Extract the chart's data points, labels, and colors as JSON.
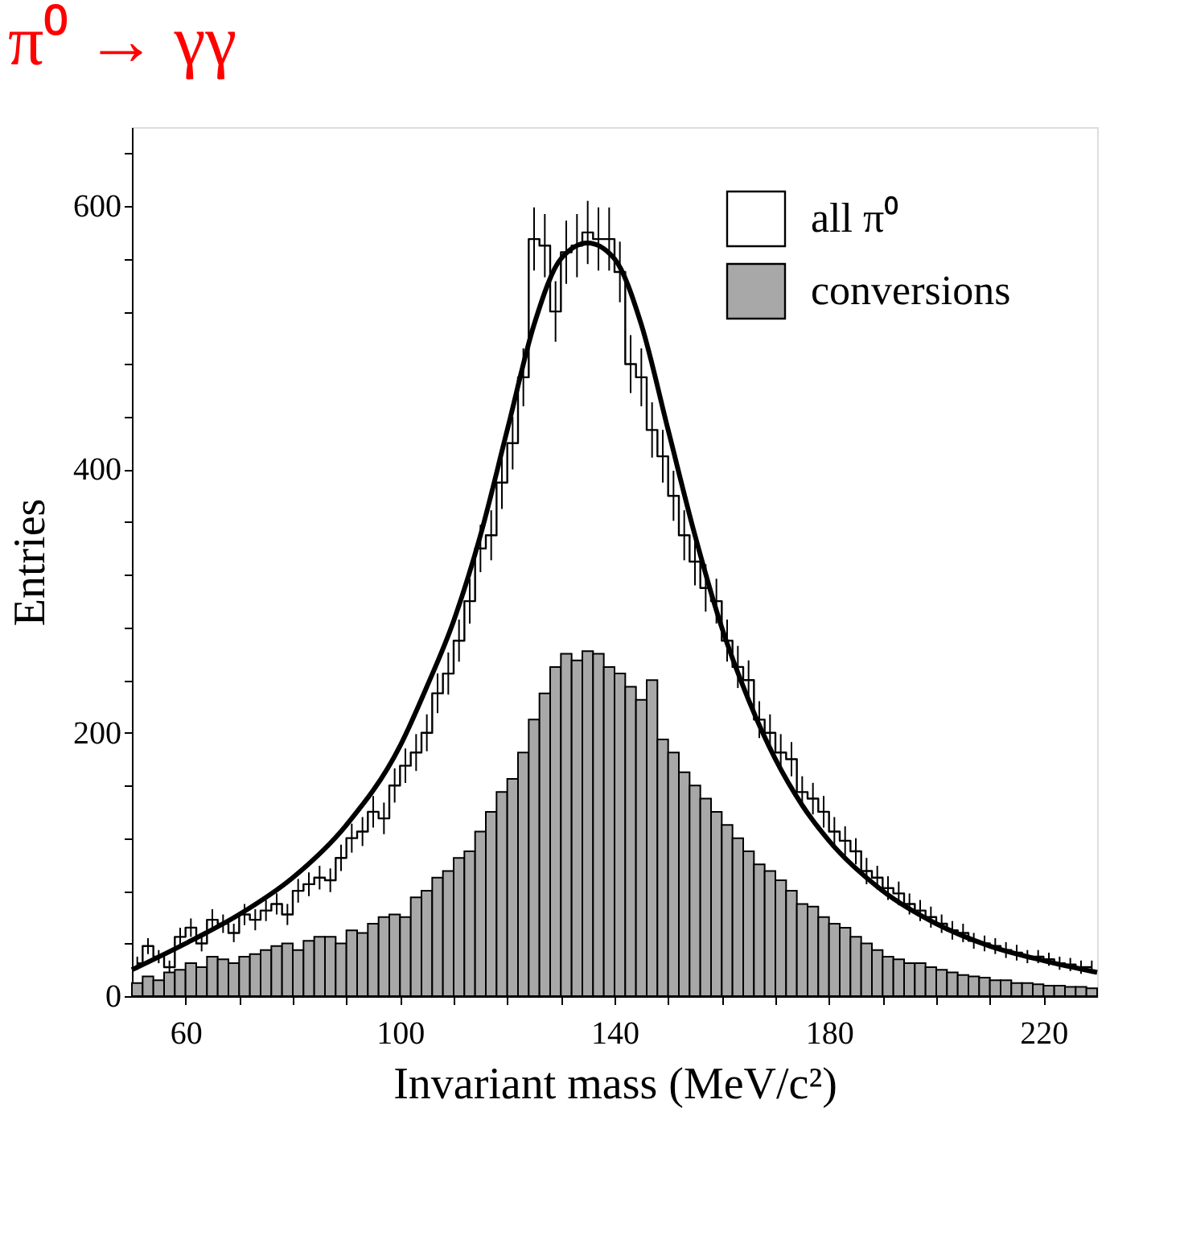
{
  "chart_data": {
    "type": "histogram",
    "title": "π⁰ → γγ",
    "xlabel": "Invariant mass  (MeV/c²)",
    "ylabel": "Entries",
    "bins": [
      50,
      52,
      54,
      56,
      58,
      60,
      62,
      64,
      66,
      68,
      70,
      72,
      74,
      76,
      78,
      80,
      82,
      84,
      86,
      88,
      90,
      92,
      94,
      96,
      98,
      100,
      102,
      104,
      106,
      108,
      110,
      112,
      114,
      116,
      118,
      120,
      122,
      124,
      126,
      128,
      130,
      132,
      134,
      136,
      138,
      140,
      142,
      144,
      146,
      148,
      150,
      152,
      154,
      156,
      158,
      160,
      162,
      164,
      166,
      168,
      170,
      172,
      174,
      176,
      178,
      180,
      182,
      184,
      186,
      188,
      190,
      192,
      194,
      196,
      198,
      200,
      202,
      204,
      206,
      208,
      210,
      212,
      214,
      216,
      218,
      220,
      222,
      224,
      226,
      228,
      230
    ],
    "series": [
      {
        "name": "all π⁰",
        "type": "step",
        "color": "#000000",
        "x": [
          51,
          53,
          55,
          57,
          59,
          61,
          63,
          65,
          67,
          69,
          71,
          73,
          75,
          77,
          79,
          81,
          83,
          85,
          87,
          89,
          91,
          93,
          95,
          97,
          99,
          101,
          103,
          105,
          107,
          109,
          111,
          113,
          115,
          117,
          119,
          121,
          123,
          125,
          127,
          129,
          131,
          133,
          135,
          137,
          139,
          141,
          143,
          145,
          147,
          149,
          151,
          153,
          155,
          157,
          159,
          161,
          163,
          165,
          167,
          169,
          171,
          173,
          175,
          177,
          179,
          181,
          183,
          185,
          187,
          189,
          191,
          193,
          195,
          197,
          199,
          201,
          203,
          205,
          207,
          209,
          211,
          213,
          215,
          217,
          219,
          221,
          223,
          225,
          227,
          229
        ],
        "values": [
          25,
          38,
          30,
          22,
          45,
          52,
          40,
          58,
          55,
          48,
          62,
          58,
          65,
          70,
          62,
          80,
          85,
          90,
          88,
          105,
          120,
          125,
          140,
          135,
          160,
          175,
          185,
          200,
          230,
          245,
          270,
          300,
          340,
          350,
          390,
          420,
          470,
          575,
          570,
          520,
          565,
          570,
          580,
          575,
          575,
          550,
          480,
          470,
          430,
          410,
          380,
          350,
          330,
          310,
          300,
          270,
          250,
          240,
          210,
          200,
          185,
          180,
          155,
          150,
          140,
          125,
          118,
          110,
          95,
          90,
          82,
          78,
          70,
          65,
          60,
          55,
          50,
          48,
          42,
          40,
          38,
          35,
          33,
          30,
          30,
          28,
          25,
          24,
          22,
          22
        ],
        "errors": [
          5,
          6,
          5,
          5,
          7,
          7,
          6,
          8,
          7,
          7,
          8,
          8,
          8,
          8,
          8,
          9,
          9,
          9,
          9,
          10,
          11,
          11,
          12,
          12,
          13,
          13,
          14,
          14,
          15,
          16,
          16,
          17,
          18,
          19,
          20,
          20,
          22,
          24,
          24,
          23,
          24,
          24,
          24,
          24,
          24,
          23,
          22,
          22,
          21,
          20,
          19,
          19,
          18,
          18,
          17,
          16,
          16,
          15,
          14,
          14,
          14,
          13,
          12,
          12,
          12,
          11,
          11,
          10,
          10,
          9,
          9,
          9,
          8,
          8,
          8,
          7,
          7,
          7,
          6,
          6,
          6,
          6,
          6,
          5,
          5,
          5,
          5,
          5,
          5,
          5
        ]
      },
      {
        "name": "conversions",
        "color": "#a8a8a8",
        "values": [
          10,
          15,
          12,
          18,
          20,
          25,
          22,
          30,
          28,
          25,
          30,
          32,
          35,
          38,
          40,
          35,
          42,
          45,
          45,
          40,
          50,
          48,
          55,
          60,
          62,
          60,
          75,
          80,
          90,
          95,
          105,
          110,
          125,
          140,
          155,
          165,
          185,
          210,
          230,
          250,
          260,
          255,
          262,
          260,
          250,
          245,
          235,
          225,
          240,
          195,
          185,
          170,
          160,
          150,
          140,
          130,
          120,
          110,
          100,
          95,
          88,
          80,
          70,
          68,
          60,
          55,
          52,
          45,
          40,
          35,
          30,
          28,
          25,
          25,
          22,
          20,
          18,
          16,
          15,
          14,
          12,
          12,
          10,
          10,
          9,
          8,
          8,
          7,
          7,
          6
        ]
      },
      {
        "type": "line",
        "color": "#000000",
        "x": [
          50,
          60,
          70,
          80,
          90,
          100,
          105,
          110,
          115,
          120,
          125,
          130,
          135,
          140,
          145,
          150,
          155,
          160,
          165,
          170,
          175,
          180,
          190,
          200,
          210,
          220,
          230
        ],
        "values": [
          20,
          40,
          62,
          90,
          130,
          190,
          235,
          285,
          350,
          430,
          510,
          560,
          572,
          560,
          510,
          430,
          350,
          280,
          225,
          180,
          145,
          118,
          80,
          55,
          38,
          27,
          18
        ]
      }
    ],
    "xlim": [
      50,
      230
    ],
    "ylim": [
      0,
      660
    ],
    "xticks": [
      60,
      {
        "value": 70,
        "label": null
      },
      {
        "value": 80,
        "label": null
      },
      {
        "value": 90,
        "label": null
      },
      100,
      {
        "value": 110,
        "label": null
      },
      {
        "value": 120,
        "label": null
      },
      {
        "value": 130,
        "label": null
      },
      140,
      {
        "value": 150,
        "label": null
      },
      {
        "value": 160,
        "label": null
      },
      {
        "value": 170,
        "label": null
      },
      180,
      {
        "value": 190,
        "label": null
      },
      {
        "value": 200,
        "label": null
      },
      {
        "value": 210,
        "label": null
      },
      220
    ],
    "yticks": [
      0,
      {
        "value": 40,
        "label": null
      },
      {
        "value": 80,
        "label": null
      },
      {
        "value": 120,
        "label": null
      },
      {
        "value": 160,
        "label": null
      },
      200,
      {
        "value": 240,
        "label": null
      },
      {
        "value": 280,
        "label": null
      },
      {
        "value": 320,
        "label": null
      },
      {
        "value": 360,
        "label": null
      },
      400,
      {
        "value": 440,
        "label": null
      },
      {
        "value": 480,
        "label": null
      },
      {
        "value": 520,
        "label": null
      },
      {
        "value": 560,
        "label": null
      },
      600,
      {
        "value": 640,
        "label": null
      }
    ],
    "grid": false,
    "legend": "top right"
  }
}
